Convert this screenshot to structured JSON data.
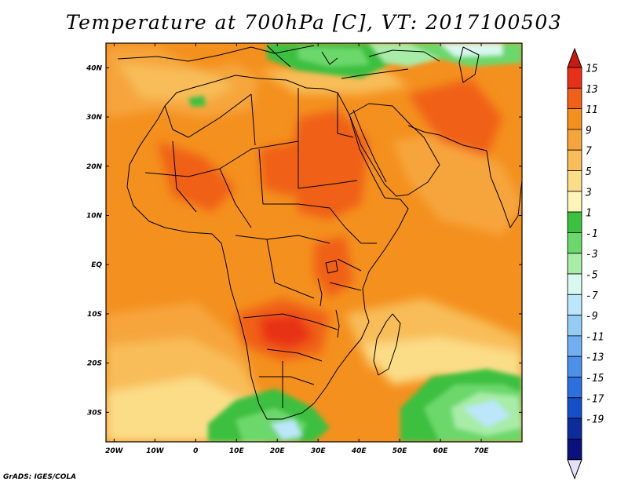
{
  "title": "Temperature at 700hPa [C], VT: 2017100503",
  "credit": "GrADS: IGES/COLA",
  "map": {
    "lon_range": [
      -22,
      80
    ],
    "lat_range": [
      -36,
      45
    ],
    "lon_ticks": [
      {
        "value": -20,
        "label": "20W"
      },
      {
        "value": -10,
        "label": "10W"
      },
      {
        "value": 0,
        "label": "0"
      },
      {
        "value": 10,
        "label": "10E"
      },
      {
        "value": 20,
        "label": "20E"
      },
      {
        "value": 30,
        "label": "30E"
      },
      {
        "value": 40,
        "label": "40E"
      },
      {
        "value": 50,
        "label": "50E"
      },
      {
        "value": 60,
        "label": "60E"
      },
      {
        "value": 70,
        "label": "70E"
      }
    ],
    "lat_ticks": [
      {
        "value": 40,
        "label": "40N"
      },
      {
        "value": 30,
        "label": "30N"
      },
      {
        "value": 20,
        "label": "20N"
      },
      {
        "value": 10,
        "label": "10N"
      },
      {
        "value": 0,
        "label": "EQ"
      },
      {
        "value": -10,
        "label": "10S"
      },
      {
        "value": -20,
        "label": "20S"
      },
      {
        "value": -30,
        "label": "30S"
      }
    ]
  },
  "colorbar": {
    "labels": [
      "15",
      "13",
      "11",
      "9",
      "7",
      "5",
      "3",
      "1",
      "-1",
      "-3",
      "-5",
      "-7",
      "-9",
      "-11",
      "-13",
      "-15",
      "-17",
      "-19"
    ],
    "colors": [
      "#e83018",
      "#f06018",
      "#f4901e",
      "#f6a53c",
      "#f8bd58",
      "#fbdd88",
      "#fdf5b8",
      "#3cc040",
      "#6cd86c",
      "#a8eca8",
      "#d8f8f0",
      "#bce6fa",
      "#94ccf6",
      "#70b0f2",
      "#4c90ea",
      "#2c70e0",
      "#1450c8",
      "#0c2c9c",
      "#0a107c"
    ],
    "over_color": "#c81a10",
    "under_color": "#e6e0fa"
  }
}
